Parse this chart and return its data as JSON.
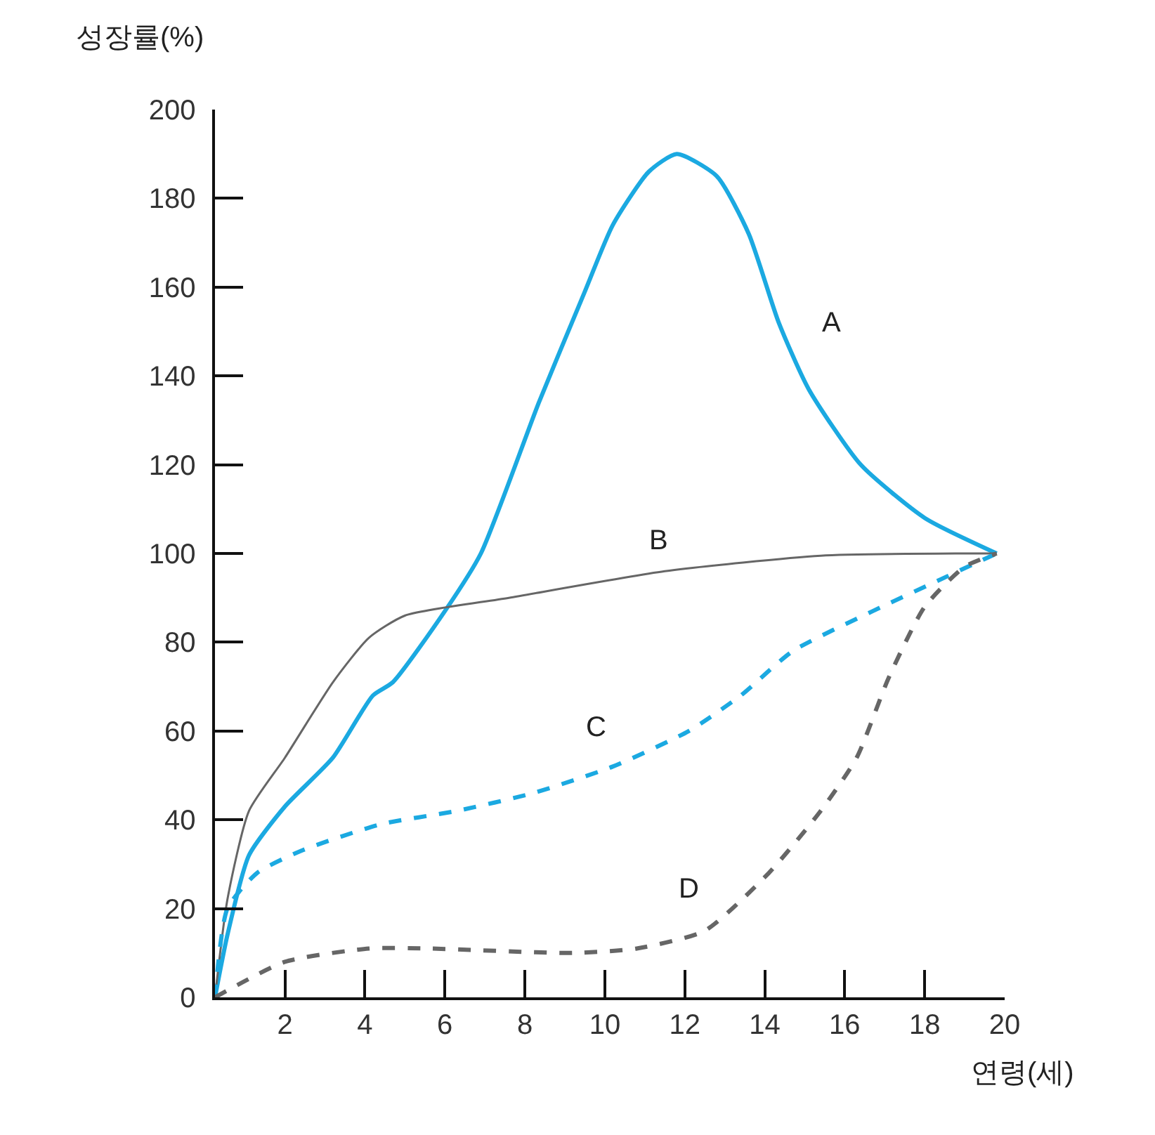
{
  "chart_data": {
    "type": "line",
    "xlabel": "연령(세)",
    "ylabel": "성장률(%)",
    "xlim": [
      0.25,
      20
    ],
    "ylim": [
      0,
      200
    ],
    "xticks": [
      2,
      4,
      6,
      8,
      10,
      12,
      14,
      16,
      18,
      20
    ],
    "yticks": [
      0,
      20,
      40,
      60,
      80,
      100,
      120,
      140,
      160,
      180,
      200
    ],
    "grid": false,
    "legend": false,
    "marker": "none",
    "series": [
      {
        "name": "A",
        "color": "#1ba9e1",
        "line_style": "solid",
        "x": [
          0.25,
          0.56,
          1.1,
          2,
          3.2,
          4.2,
          4.7,
          6,
          6.9,
          8.35,
          9.5,
          10.2,
          11.1,
          11.8,
          12.8,
          13.6,
          14.35,
          15.1,
          16.4,
          18,
          19.8
        ],
        "values": [
          0,
          14,
          32,
          43,
          54,
          68,
          71,
          87,
          100,
          134,
          159,
          174,
          186,
          190,
          185,
          172,
          152,
          137,
          120,
          108,
          100
        ]
      },
      {
        "name": "B",
        "color": "#666666",
        "line_style": "solid",
        "x": [
          0.25,
          0.56,
          1.1,
          2,
          3.2,
          4.1,
          5,
          7.6,
          11.5,
          15.4,
          19,
          19.8
        ],
        "values": [
          0,
          22,
          42,
          54,
          71,
          81,
          86,
          90,
          96,
          99.5,
          100,
          100
        ]
      },
      {
        "name": "C",
        "color": "#1ba9e1",
        "line_style": "dashed",
        "x": [
          0.25,
          0.56,
          1.3,
          2.4,
          4.4,
          6.3,
          8.2,
          10.2,
          12.1,
          13.4,
          14.7,
          16.7,
          18.6,
          19.8
        ],
        "values": [
          0,
          20,
          28,
          33,
          39,
          42,
          46,
          52,
          60,
          68,
          78,
          87,
          95,
          100
        ]
      },
      {
        "name": "D",
        "color": "#666666",
        "line_style": "dashed",
        "x": [
          0.25,
          2,
          4.1,
          5.6,
          9.2,
          10.8,
          12.5,
          14.1,
          15.4,
          16.3,
          17.1,
          18,
          19,
          19.8
        ],
        "values": [
          0,
          8,
          11,
          11,
          10,
          11,
          15,
          28,
          42,
          54,
          72,
          88,
          97,
          100
        ]
      }
    ]
  }
}
